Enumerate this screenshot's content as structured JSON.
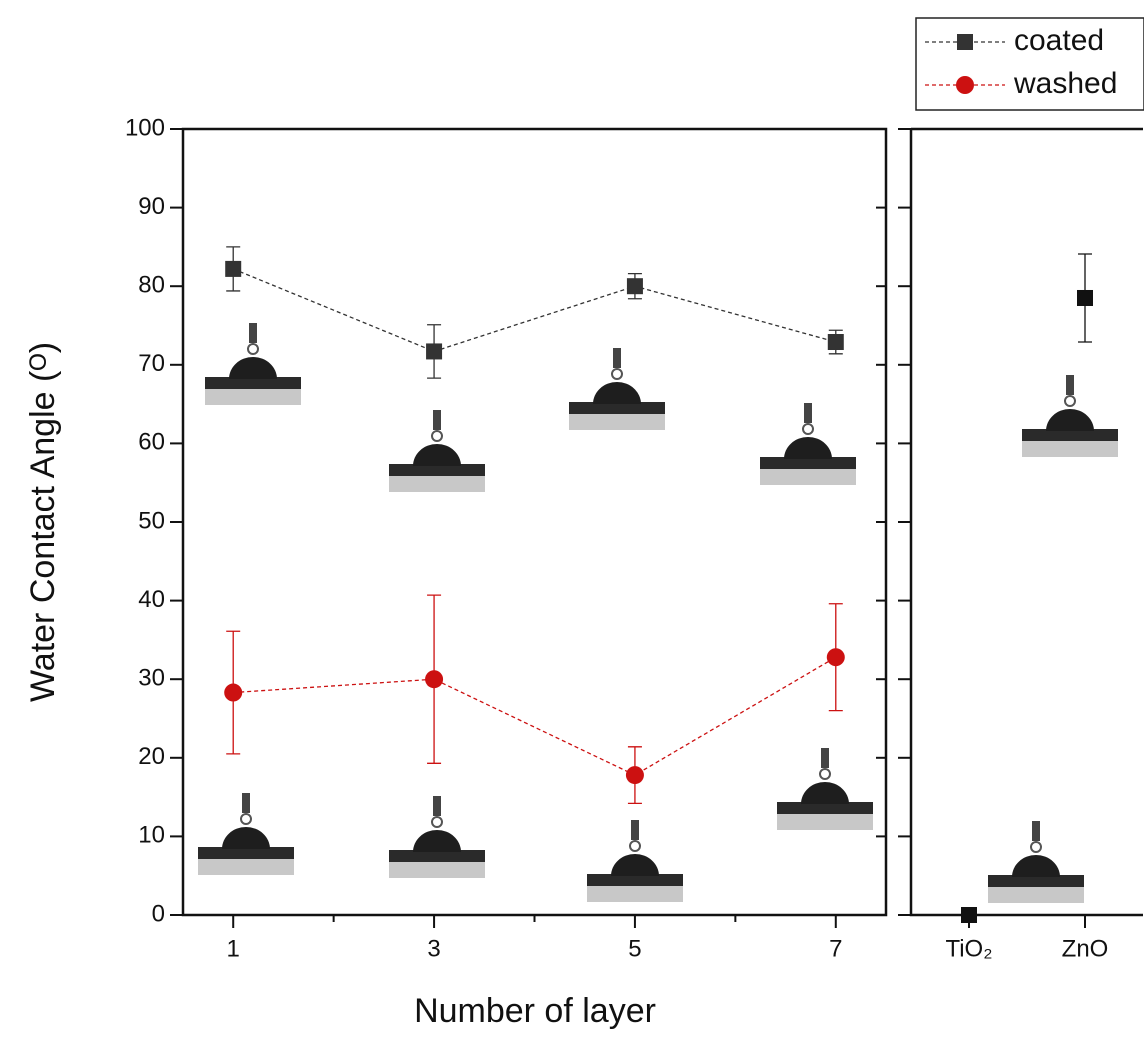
{
  "chart_data": [
    {
      "type": "line",
      "x_label": "Number of layer",
      "y_label": "Water Contact Angle (ᴼ)",
      "x": [
        1,
        3,
        5,
        7
      ],
      "xlim": [
        0.5,
        7.5
      ],
      "xticks": [
        1,
        3,
        5,
        7
      ],
      "xminorticks": [
        2,
        4,
        6
      ],
      "ylim": [
        0,
        100
      ],
      "yticks": [
        0,
        10,
        20,
        30,
        40,
        50,
        60,
        70,
        80,
        90,
        100
      ],
      "legend": "top-right",
      "series": [
        {
          "name": "coated",
          "color": "#333333",
          "marker": "square",
          "values": [
            82.2,
            71.7,
            80.0,
            72.9
          ],
          "errors": [
            2.8,
            3.4,
            1.6,
            1.5
          ]
        },
        {
          "name": "washed",
          "color": "#cc1111",
          "marker": "circle",
          "values": [
            28.3,
            30.0,
            17.8,
            32.8
          ],
          "errors": [
            7.8,
            10.7,
            3.6,
            6.8
          ]
        }
      ]
    },
    {
      "type": "scatter",
      "categories": [
        "TiO₂",
        "ZnO"
      ],
      "ylim": [
        0,
        100
      ],
      "yticks": [
        0,
        10,
        20,
        30,
        40,
        50,
        60,
        70,
        80,
        90,
        100
      ],
      "series": [
        {
          "color": "#111111",
          "marker": "square",
          "values": [
            0,
            78.5
          ],
          "errors": [
            null,
            5.6
          ]
        }
      ]
    }
  ]
}
